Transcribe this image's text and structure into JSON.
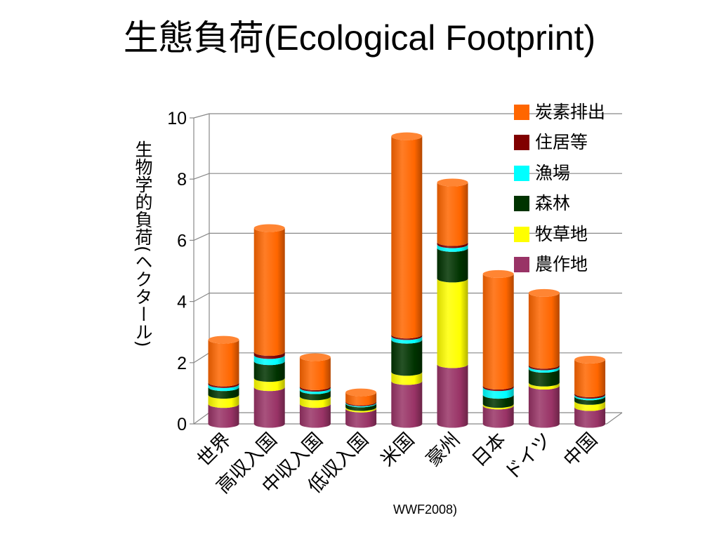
{
  "page": {
    "title_jp": "生態負荷",
    "title_en": "(Ecological Footprint)",
    "source": "WWF2008)"
  },
  "chart_data": {
    "type": "bar",
    "stacked": true,
    "style": "3d-cylinder",
    "title": "生態負荷(Ecological Footprint)",
    "ylabel": "生物学的負荷(ヘクタール)",
    "xlabel": "",
    "ylim": [
      0,
      10
    ],
    "yticks": [
      "0",
      "2",
      "4",
      "6",
      "8",
      "10"
    ],
    "grid": true,
    "legend_position": "right",
    "categories": [
      "世界",
      "高収入国",
      "中収入国",
      "低収入国",
      "米国",
      "豪州",
      "日本",
      "ドイツ",
      "中国"
    ],
    "series": [
      {
        "name": "農作地",
        "color": "#993366",
        "values": [
          0.65,
          1.2,
          0.65,
          0.5,
          1.4,
          1.95,
          0.6,
          1.25,
          0.55
        ]
      },
      {
        "name": "牧草地",
        "color": "#ffff00",
        "values": [
          0.3,
          0.3,
          0.25,
          0.05,
          0.3,
          2.8,
          0.05,
          0.1,
          0.2
        ]
      },
      {
        "name": "森林",
        "color": "#003300",
        "values": [
          0.25,
          0.55,
          0.2,
          0.12,
          1.05,
          1.0,
          0.3,
          0.45,
          0.15
        ]
      },
      {
        "name": "漁場",
        "color": "#00ffff",
        "values": [
          0.1,
          0.2,
          0.08,
          0.03,
          0.12,
          0.12,
          0.25,
          0.08,
          0.05
        ]
      },
      {
        "name": "住居等",
        "color": "#800000",
        "values": [
          0.05,
          0.1,
          0.05,
          0.03,
          0.05,
          0.07,
          0.05,
          0.05,
          0.05
        ]
      },
      {
        "name": "炭素排出",
        "color": "#ff6600",
        "values": [
          1.4,
          4.05,
          0.95,
          0.3,
          6.48,
          1.95,
          3.65,
          2.35,
          1.1
        ]
      }
    ]
  }
}
